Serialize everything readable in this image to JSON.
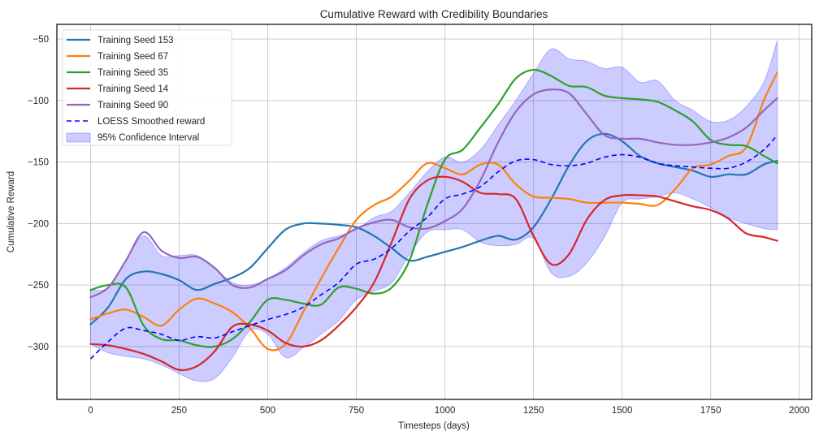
{
  "chart_data": {
    "type": "line",
    "title": "Cumulative Reward with Credibility Boundaries",
    "xlabel": "Timesteps (days)",
    "ylabel": "Cumulative Reward",
    "xlim": [
      -95,
      2035
    ],
    "ylim": [
      -343,
      -38
    ],
    "xticks": [
      0,
      250,
      500,
      750,
      1000,
      1250,
      1500,
      1750,
      2000
    ],
    "xtick_labels": [
      "0",
      "250",
      "500",
      "750",
      "1000",
      "1250",
      "1500",
      "1750",
      "2000"
    ],
    "yticks": [
      -50,
      -100,
      -150,
      -200,
      -250,
      -300
    ],
    "ytick_labels": [
      "−50",
      "−100",
      "−150",
      "−200",
      "−250",
      "−300"
    ],
    "grid": true,
    "legend_position": "upper-left",
    "x": [
      0,
      50,
      100,
      150,
      200,
      250,
      300,
      350,
      400,
      450,
      500,
      550,
      600,
      650,
      700,
      750,
      800,
      850,
      900,
      950,
      1000,
      1050,
      1100,
      1150,
      1200,
      1250,
      1300,
      1350,
      1400,
      1450,
      1500,
      1550,
      1600,
      1650,
      1700,
      1750,
      1800,
      1850,
      1900,
      1938
    ],
    "series": [
      {
        "name": "Training Seed 153",
        "color": "#1f77b4",
        "style": "solid",
        "values": [
          -282,
          -268,
          -245,
          -239,
          -241,
          -246,
          -254,
          -249,
          -244,
          -236,
          -220,
          -205,
          -200,
          -200,
          -201,
          -203,
          -210,
          -220,
          -230,
          -227,
          -223,
          -219,
          -214,
          -210,
          -213,
          -203,
          -180,
          -153,
          -133,
          -127,
          -133,
          -145,
          -151,
          -154,
          -157,
          -162,
          -160,
          -160,
          -152,
          -149
        ]
      },
      {
        "name": "Training Seed 67",
        "color": "#ff7f0e",
        "style": "solid",
        "values": [
          -278,
          -273,
          -270,
          -276,
          -283,
          -270,
          -261,
          -265,
          -272,
          -285,
          -302,
          -298,
          -272,
          -245,
          -220,
          -197,
          -185,
          -178,
          -165,
          -151,
          -155,
          -160,
          -152,
          -152,
          -168,
          -178,
          -179,
          -180,
          -183,
          -183,
          -183,
          -184,
          -185,
          -172,
          -155,
          -152,
          -145,
          -138,
          -100,
          -77
        ]
      },
      {
        "name": "Training Seed 35",
        "color": "#2ca02c",
        "style": "solid",
        "values": [
          -254,
          -250,
          -252,
          -283,
          -294,
          -295,
          -299,
          -300,
          -294,
          -280,
          -262,
          -262,
          -265,
          -266,
          -252,
          -253,
          -257,
          -252,
          -230,
          -185,
          -148,
          -140,
          -122,
          -103,
          -82,
          -75,
          -80,
          -88,
          -89,
          -96,
          -98,
          -99,
          -101,
          -108,
          -117,
          -132,
          -136,
          -137,
          -145,
          -151
        ]
      },
      {
        "name": "Training Seed 14",
        "color": "#d62728",
        "style": "solid",
        "values": [
          -298,
          -299,
          -302,
          -306,
          -312,
          -319,
          -316,
          -304,
          -284,
          -282,
          -287,
          -297,
          -300,
          -295,
          -283,
          -268,
          -248,
          -215,
          -180,
          -165,
          -162,
          -166,
          -175,
          -176,
          -180,
          -210,
          -233,
          -225,
          -197,
          -181,
          -177,
          -177,
          -178,
          -182,
          -186,
          -189,
          -196,
          -208,
          -211,
          -214
        ]
      },
      {
        "name": "Training Seed 90",
        "color": "#9467bd",
        "style": "solid",
        "values": [
          -260,
          -252,
          -230,
          -207,
          -222,
          -228,
          -227,
          -236,
          -250,
          -252,
          -245,
          -238,
          -226,
          -217,
          -212,
          -204,
          -199,
          -197,
          -203,
          -204,
          -198,
          -188,
          -165,
          -134,
          -109,
          -95,
          -91,
          -94,
          -111,
          -128,
          -131,
          -131,
          -134,
          -136,
          -136,
          -134,
          -130,
          -122,
          -108,
          -98
        ]
      },
      {
        "name": "LOESS Smoothed reward",
        "color": "#0000ff",
        "style": "dashed",
        "values": [
          -310,
          -296,
          -285,
          -287,
          -290,
          -295,
          -292,
          -293,
          -288,
          -283,
          -278,
          -274,
          -268,
          -258,
          -248,
          -233,
          -229,
          -220,
          -206,
          -195,
          -180,
          -176,
          -170,
          -158,
          -149,
          -148,
          -152,
          -153,
          -151,
          -146,
          -144,
          -146,
          -151,
          -153,
          -154,
          -155,
          -155,
          -150,
          -140,
          -128
        ]
      }
    ],
    "confidence_interval": {
      "name": "95% Confidence Interval",
      "color": "#0000ff",
      "alpha": 0.2,
      "upper": [
        -254,
        -252,
        -230,
        -210,
        -226,
        -226,
        -226,
        -236,
        -248,
        -250,
        -245,
        -236,
        -224,
        -214,
        -210,
        -205,
        -195,
        -190,
        -175,
        -158,
        -146,
        -150,
        -140,
        -120,
        -100,
        -78,
        -58,
        -66,
        -68,
        -74,
        -73,
        -85,
        -84,
        -100,
        -108,
        -117,
        -116,
        -105,
        -85,
        -51
      ],
      "lower": [
        -298,
        -305,
        -308,
        -310,
        -315,
        -322,
        -328,
        -326,
        -309,
        -287,
        -290,
        -309,
        -301,
        -290,
        -279,
        -262,
        -255,
        -248,
        -225,
        -207,
        -205,
        -205,
        -215,
        -218,
        -217,
        -212,
        -240,
        -243,
        -232,
        -211,
        -183,
        -180,
        -178,
        -175,
        -180,
        -187,
        -195,
        -200,
        -204,
        -205
      ]
    }
  }
}
